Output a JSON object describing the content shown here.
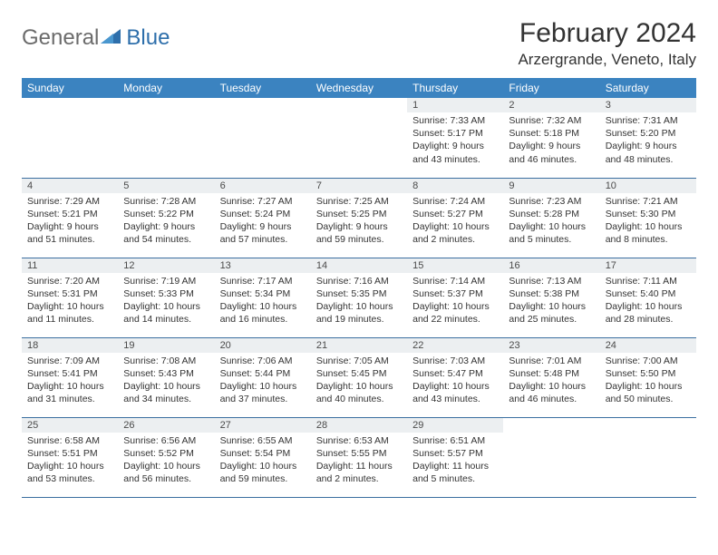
{
  "logo": {
    "general": "General",
    "blue": "Blue"
  },
  "title": "February 2024",
  "location": "Arzergrande, Veneto, Italy",
  "colors": {
    "header_bg": "#3b83c0",
    "header_text": "#ffffff",
    "daynum_bg": "#eceff1",
    "border": "#3b6fa0",
    "logo_gray": "#6b6b6b",
    "logo_blue": "#2e6fab"
  },
  "weekdays": [
    "Sunday",
    "Monday",
    "Tuesday",
    "Wednesday",
    "Thursday",
    "Friday",
    "Saturday"
  ],
  "weeks": [
    [
      null,
      null,
      null,
      null,
      {
        "n": "1",
        "sr": "7:33 AM",
        "ss": "5:17 PM",
        "dl": "9 hours and 43 minutes."
      },
      {
        "n": "2",
        "sr": "7:32 AM",
        "ss": "5:18 PM",
        "dl": "9 hours and 46 minutes."
      },
      {
        "n": "3",
        "sr": "7:31 AM",
        "ss": "5:20 PM",
        "dl": "9 hours and 48 minutes."
      }
    ],
    [
      {
        "n": "4",
        "sr": "7:29 AM",
        "ss": "5:21 PM",
        "dl": "9 hours and 51 minutes."
      },
      {
        "n": "5",
        "sr": "7:28 AM",
        "ss": "5:22 PM",
        "dl": "9 hours and 54 minutes."
      },
      {
        "n": "6",
        "sr": "7:27 AM",
        "ss": "5:24 PM",
        "dl": "9 hours and 57 minutes."
      },
      {
        "n": "7",
        "sr": "7:25 AM",
        "ss": "5:25 PM",
        "dl": "9 hours and 59 minutes."
      },
      {
        "n": "8",
        "sr": "7:24 AM",
        "ss": "5:27 PM",
        "dl": "10 hours and 2 minutes."
      },
      {
        "n": "9",
        "sr": "7:23 AM",
        "ss": "5:28 PM",
        "dl": "10 hours and 5 minutes."
      },
      {
        "n": "10",
        "sr": "7:21 AM",
        "ss": "5:30 PM",
        "dl": "10 hours and 8 minutes."
      }
    ],
    [
      {
        "n": "11",
        "sr": "7:20 AM",
        "ss": "5:31 PM",
        "dl": "10 hours and 11 minutes."
      },
      {
        "n": "12",
        "sr": "7:19 AM",
        "ss": "5:33 PM",
        "dl": "10 hours and 14 minutes."
      },
      {
        "n": "13",
        "sr": "7:17 AM",
        "ss": "5:34 PM",
        "dl": "10 hours and 16 minutes."
      },
      {
        "n": "14",
        "sr": "7:16 AM",
        "ss": "5:35 PM",
        "dl": "10 hours and 19 minutes."
      },
      {
        "n": "15",
        "sr": "7:14 AM",
        "ss": "5:37 PM",
        "dl": "10 hours and 22 minutes."
      },
      {
        "n": "16",
        "sr": "7:13 AM",
        "ss": "5:38 PM",
        "dl": "10 hours and 25 minutes."
      },
      {
        "n": "17",
        "sr": "7:11 AM",
        "ss": "5:40 PM",
        "dl": "10 hours and 28 minutes."
      }
    ],
    [
      {
        "n": "18",
        "sr": "7:09 AM",
        "ss": "5:41 PM",
        "dl": "10 hours and 31 minutes."
      },
      {
        "n": "19",
        "sr": "7:08 AM",
        "ss": "5:43 PM",
        "dl": "10 hours and 34 minutes."
      },
      {
        "n": "20",
        "sr": "7:06 AM",
        "ss": "5:44 PM",
        "dl": "10 hours and 37 minutes."
      },
      {
        "n": "21",
        "sr": "7:05 AM",
        "ss": "5:45 PM",
        "dl": "10 hours and 40 minutes."
      },
      {
        "n": "22",
        "sr": "7:03 AM",
        "ss": "5:47 PM",
        "dl": "10 hours and 43 minutes."
      },
      {
        "n": "23",
        "sr": "7:01 AM",
        "ss": "5:48 PM",
        "dl": "10 hours and 46 minutes."
      },
      {
        "n": "24",
        "sr": "7:00 AM",
        "ss": "5:50 PM",
        "dl": "10 hours and 50 minutes."
      }
    ],
    [
      {
        "n": "25",
        "sr": "6:58 AM",
        "ss": "5:51 PM",
        "dl": "10 hours and 53 minutes."
      },
      {
        "n": "26",
        "sr": "6:56 AM",
        "ss": "5:52 PM",
        "dl": "10 hours and 56 minutes."
      },
      {
        "n": "27",
        "sr": "6:55 AM",
        "ss": "5:54 PM",
        "dl": "10 hours and 59 minutes."
      },
      {
        "n": "28",
        "sr": "6:53 AM",
        "ss": "5:55 PM",
        "dl": "11 hours and 2 minutes."
      },
      {
        "n": "29",
        "sr": "6:51 AM",
        "ss": "5:57 PM",
        "dl": "11 hours and 5 minutes."
      },
      null,
      null
    ]
  ],
  "labels": {
    "sunrise": "Sunrise:",
    "sunset": "Sunset:",
    "daylight": "Daylight:"
  }
}
